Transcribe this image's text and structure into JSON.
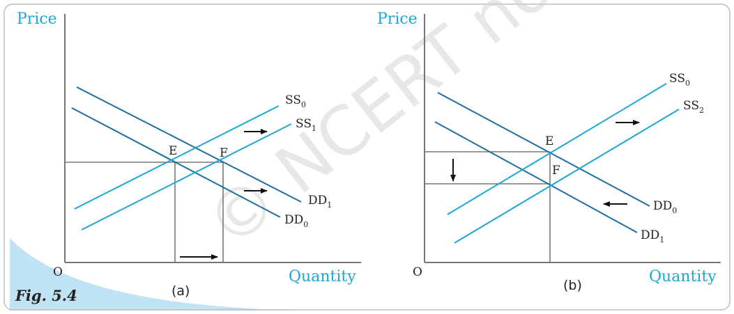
{
  "figure": {
    "label": "Fig. 5.4",
    "watermark": "© NCERT not to be republished",
    "colors": {
      "frame": "#bdbdbd",
      "axis": "#777777",
      "blue": "#1ba6d8",
      "demand": "#1c6e9e",
      "accent_band": "#bfe3f4"
    }
  },
  "panel_a": {
    "y_axis_title": "Price",
    "x_axis_title": "Quantity",
    "origin": "O",
    "caption": "(a)",
    "point_e": "E",
    "point_f": "F",
    "ss0": {
      "main": "SS",
      "sub": "0"
    },
    "ss1": {
      "main": "SS",
      "sub": "1"
    },
    "dd0": {
      "main": "DD",
      "sub": "0"
    },
    "dd1": {
      "main": "DD",
      "sub": "1"
    }
  },
  "panel_b": {
    "y_axis_title": "Price",
    "x_axis_title": "Quantity",
    "origin": "O",
    "caption": "(b)",
    "point_e": "E",
    "point_f": "F",
    "ss0": {
      "main": "SS",
      "sub": "0"
    },
    "ss2": {
      "main": "SS",
      "sub": "2"
    },
    "dd0": {
      "main": "DD",
      "sub": "0"
    },
    "dd1": {
      "main": "DD",
      "sub": "1"
    }
  }
}
